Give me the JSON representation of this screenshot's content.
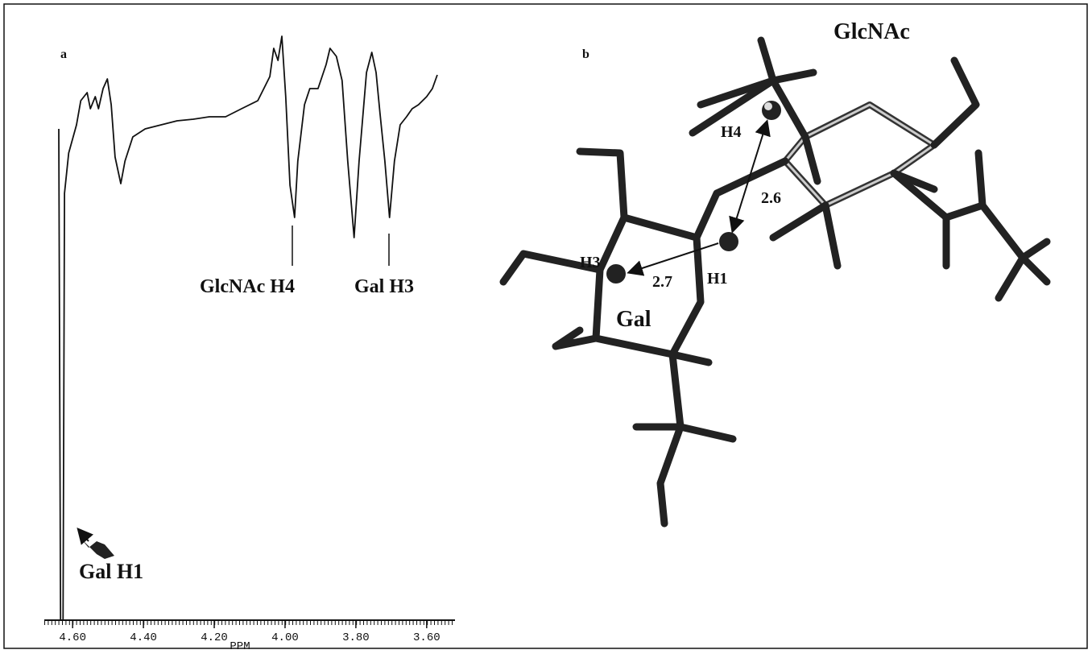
{
  "chart_data": {
    "type": "line",
    "panel_label": "a",
    "xlabel": "PPM",
    "x": [
      4.639,
      4.634,
      4.627,
      4.623,
      4.611,
      4.589,
      4.577,
      4.559,
      4.55,
      4.536,
      4.527,
      4.514,
      4.502,
      4.491,
      4.48,
      4.464,
      4.452,
      4.43,
      4.395,
      4.35,
      4.305,
      4.259,
      4.214,
      4.168,
      4.123,
      4.077,
      4.043,
      4.032,
      4.02,
      4.009,
      3.998,
      3.986,
      3.973,
      3.964,
      3.945,
      3.93,
      3.907,
      3.884,
      3.873,
      3.855,
      3.839,
      3.823,
      3.805,
      3.791,
      3.77,
      3.755,
      3.743,
      3.732,
      3.718,
      3.705,
      3.691,
      3.675,
      3.657,
      3.641,
      3.623,
      3.6,
      3.584,
      3.57
    ],
    "values": [
      610,
      0,
      0,
      530,
      580,
      615,
      645,
      655,
      635,
      650,
      635,
      660,
      672,
      640,
      575,
      542,
      570,
      600,
      610,
      615,
      620,
      622,
      625,
      625,
      635,
      645,
      675,
      710,
      695,
      725,
      650,
      540,
      500,
      570,
      640,
      660,
      660,
      690,
      710,
      700,
      670,
      570,
      475,
      570,
      680,
      705,
      680,
      630,
      570,
      500,
      570,
      615,
      625,
      635,
      640,
      650,
      660,
      677
    ],
    "color": "#111111",
    "xlim": [
      4.68,
      3.52
    ],
    "xticks": [
      {
        "value": 4.6,
        "label": "4.60"
      },
      {
        "value": 4.4,
        "label": "4.40"
      },
      {
        "value": 4.2,
        "label": "4.20"
      },
      {
        "value": 4.0,
        "label": "4.00"
      },
      {
        "value": 3.8,
        "label": "3.80"
      },
      {
        "value": 3.6,
        "label": "3.60"
      }
    ],
    "ylim": [
      0,
      730
    ],
    "annotations": [
      "GlcNAc H4",
      "Gal H3",
      "Gal H1"
    ]
  },
  "diagram": {
    "panel_label": "b",
    "residues": [
      "GlcNAc",
      "Gal"
    ],
    "atoms": [
      "H4",
      "H3",
      "H1"
    ],
    "distances": [
      "2.6",
      "2.7"
    ]
  }
}
